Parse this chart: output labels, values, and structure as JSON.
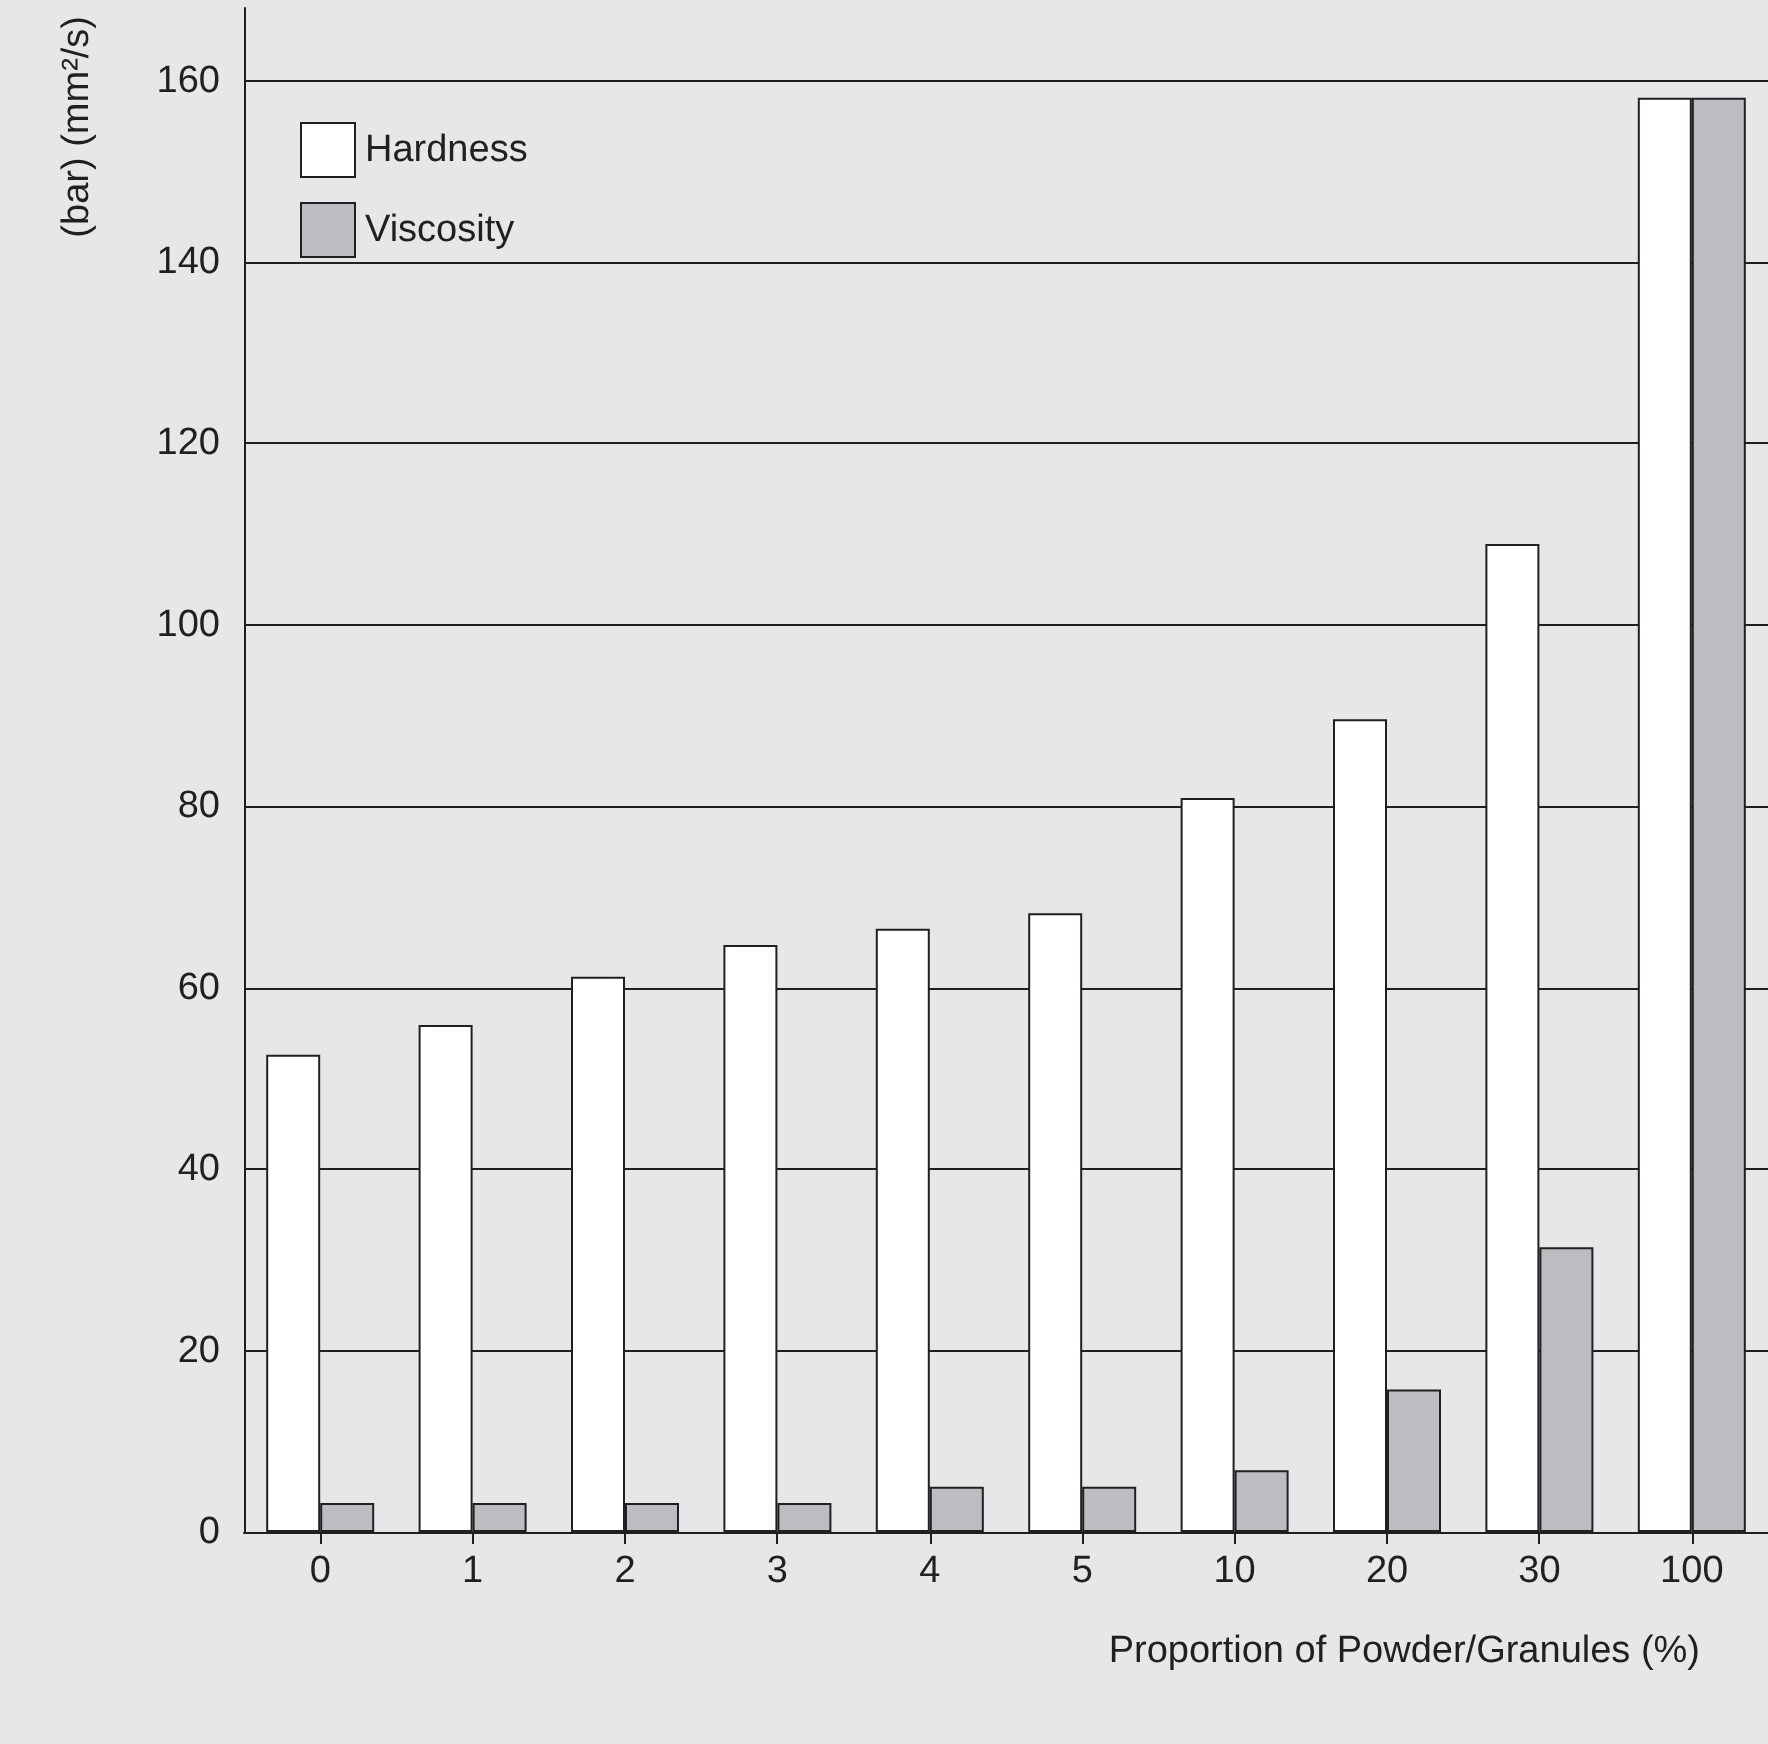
{
  "chart_data": {
    "type": "bar",
    "xlabel": "Proportion of Powder/Granules (%)",
    "ylabel": "(bar) (mm²/s)",
    "categories": [
      "0",
      "1",
      "2",
      "3",
      "4",
      "5",
      "10",
      "20",
      "30",
      "100"
    ],
    "series": [
      {
        "name": "Hardness",
        "color": "#ffffff",
        "values": [
          52.6,
          55.9,
          61.2,
          64.7,
          66.5,
          68.2,
          80.9,
          89.6,
          108.9,
          158.1
        ]
      },
      {
        "name": "Viscosity",
        "color": "#bcbdc1",
        "values": [
          3.2,
          3.2,
          3.2,
          3.2,
          5.0,
          5.0,
          6.8,
          15.7,
          31.4,
          158.1
        ]
      }
    ],
    "ylim": [
      0,
      168
    ],
    "yticks": [
      0,
      20,
      40,
      60,
      80,
      100,
      120,
      140,
      160
    ],
    "grid": "y",
    "legend": "top left"
  }
}
